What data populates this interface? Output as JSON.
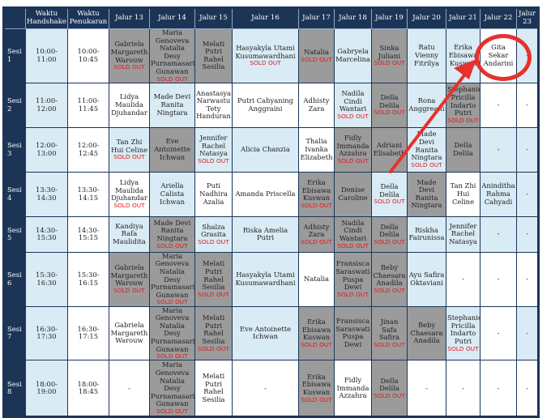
{
  "headers": {
    "handshake": "Waktu Handshake",
    "penukaran": "Waktu Penukaran",
    "j13": "Jalur 13",
    "j14": "Jalur 14",
    "j15": "Jalur 15",
    "j16": "Jalur 16",
    "j17": "Jalur 17",
    "j18": "Jalur 18",
    "j19": "Jalur 19",
    "j20": "Jalur 20",
    "j21": "Jalur 21",
    "j22": "Jalur 22",
    "j23": "Jalur 23"
  },
  "sold_out_label": "SOLD OUT",
  "dash": "-",
  "rows": [
    {
      "sesi": "Sesi 1",
      "handshake": "10:00-11:00",
      "penukaran": "10:00-10:45",
      "cells": [
        "Gabriela Margareth Warouw",
        "Maria Genoveva Natalia Desy Purnamasari Gunawan",
        "Melati Putri Rahel Sesilia",
        "Hasyakyla Utami Kusumawardhani",
        "Natalia",
        "Gabryela Marcelina",
        "Sinka Juliani",
        "Ratu Vienny Fitrilya",
        "Erika Ebisawa Kuswan",
        "Gita Sekar Andarini",
        "-"
      ]
    },
    {
      "sesi": "Sesi 2",
      "handshake": "11:00-12:00",
      "penukaran": "11:00-11:45",
      "cells": [
        "Lidya Maulida Djuhandar",
        "Made Devi Ranita Ningtara",
        "Anastasya Narwastu Tety Handuran",
        "Putri Cahyaning Anggraini",
        "Adhisty Zara",
        "Nadila Cindi Wantari",
        "Della Delila",
        "Rona Anggreani",
        "Stephanie Pricilla Indarto Putri",
        "-",
        "-"
      ]
    },
    {
      "sesi": "Sesi 3",
      "handshake": "12:00-13:00",
      "penukaran": "12:00-12:45",
      "cells": [
        "Tan Zhi Hui Celine",
        "Eve Antoinette Ichwan",
        "Jennifer Rachel Natasya",
        "Alicia Chanzia",
        "Thalia Ivanka Elizabeth",
        "Fidly Immanda Azzahra",
        "Adriani Elisabeth",
        "Made Devi Ranita Ningtara",
        "Della Delila",
        "-",
        "-"
      ]
    },
    {
      "sesi": "Sesi 4",
      "handshake": "13:30-14:30",
      "penukaran": "13:30-14:15",
      "cells": [
        "Lidya Maulida Djuhandar",
        "Ariella Calista Ichwan",
        "Puti Nadhira Azalia",
        "Amanda Priscella",
        "Erika Ebisawa Kuswan",
        "Denise Caroline",
        "Della Delila",
        "Made Devi Ranita Ningtara",
        "Tan Zhi Hui Celine",
        "Aninditha Rahma Cahyadi",
        "-"
      ]
    },
    {
      "sesi": "Sesi 5",
      "handshake": "14:30-15:30",
      "penukaran": "14:30-15:15",
      "cells": [
        "Kandiya Rafa Maulidita",
        "Made Devi Ranita Ningtara",
        "Shalza Grasita",
        "Riska Amelia Putri",
        "Adhisty Zara",
        "Nadila Cindi Wantari",
        "Della Delila",
        "Riskha Fairunissa",
        "Jennifer Rachel Natasya",
        "-",
        "-"
      ]
    },
    {
      "sesi": "Sesi 6",
      "handshake": "15:30-16:30",
      "penukaran": "15:30-16:15",
      "cells": [
        "Gabriela Margareth Warouw",
        "Maria Genoveva Natalia Desy Purnamasari Gunawan",
        "Melati Putri Rahel Sesilia",
        "Hasyakyla Utami Kusumawardhani",
        "Natalia",
        "Fransisca Saraswati Puspa Dewi",
        "Beby Chaesara Anadila",
        "Ayu Safira Oktaviani",
        "-",
        "-",
        "-"
      ]
    },
    {
      "sesi": "Sesi 7",
      "handshake": "16:30-17:30",
      "penukaran": "16:30-17:15",
      "cells": [
        "Gabriela Margareth Warouw",
        "Maria Genoveva Natalia Desy Purnamasari Gunawan",
        "Melati Putri Rahel Sesilia",
        "Eve Antoinette Ichwan",
        "Erika Ebisawa Kuswan",
        "Fransisca Saraswati Puspa Dewi",
        "Jinan Safa Safira",
        "Beby Chaesara Anadila",
        "Stephanie Pricilla Indarto Putri",
        "-",
        "-"
      ]
    },
    {
      "sesi": "Sesi 8",
      "handshake": "18:00-19:00",
      "penukaran": "18:00-18:45",
      "cells": [
        "-",
        "Maria Genoveva Natalia Desy Purnamasari Gunawan",
        "Melati Putri Rahel Sesilia",
        "-",
        "Erika Ebisawa Kuswan",
        "Fidly Immanda Azzahra",
        "Della Delila",
        "-",
        "-",
        "-",
        "-"
      ]
    }
  ]
}
